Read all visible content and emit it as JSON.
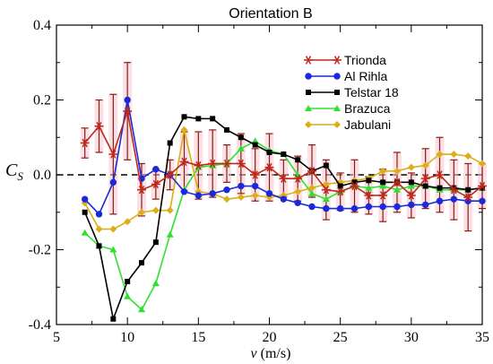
{
  "chart_data": {
    "type": "line",
    "title": "Orientation B",
    "xlabel_symbol": "v",
    "xlabel_unit": "(m/s)",
    "ylabel_symbol": "C",
    "ylabel_subscript": "S",
    "xlim": [
      5,
      35
    ],
    "ylim": [
      -0.4,
      0.4
    ],
    "xticks": [
      5,
      10,
      15,
      20,
      25,
      30,
      35
    ],
    "yticks": [
      -0.4,
      -0.2,
      0.0,
      0.2,
      0.4
    ],
    "ytick_labels": [
      "-0.4",
      "-0.2",
      "0.0",
      "0.2",
      "0.4"
    ],
    "reference_line": 0,
    "legend_position": "top-right",
    "series": [
      {
        "name": "Trionda",
        "color": "#c0281c",
        "marker": "star",
        "x": [
          7,
          8,
          9,
          10,
          11,
          12,
          13,
          14,
          15,
          16,
          17,
          18,
          19,
          20,
          21,
          22,
          23,
          24,
          25,
          26,
          27,
          28,
          29,
          30,
          31,
          32,
          33,
          34,
          35
        ],
        "y": [
          0.085,
          0.13,
          0.055,
          0.17,
          -0.04,
          -0.025,
          0.0,
          0.035,
          0.025,
          0.03,
          0.03,
          0.03,
          0.0,
          0.02,
          -0.01,
          -0.01,
          0.01,
          -0.04,
          -0.045,
          -0.03,
          -0.055,
          -0.055,
          -0.02,
          -0.055,
          -0.01,
          0.0,
          -0.04,
          -0.06,
          -0.03
        ],
        "err": [
          0.04,
          0.07,
          0.16,
          0.13,
          0.07,
          0.04,
          0.04,
          0.08,
          0.09,
          0.09,
          0.05,
          0.08,
          0.07,
          0.09,
          0.05,
          0.06,
          0.07,
          0.08,
          0.05,
          0.07,
          0.05,
          0.07,
          0.08,
          0.06,
          0.08,
          0.1,
          0.08,
          0.09,
          0.06
        ]
      },
      {
        "name": "Al Rihla",
        "color": "#1a2ad8",
        "marker": "circle",
        "x": [
          7,
          8,
          9,
          10,
          11,
          12,
          13,
          14,
          15,
          16,
          17,
          18,
          19,
          20,
          21,
          22,
          23,
          24,
          25,
          26,
          27,
          28,
          29,
          30,
          31,
          32,
          33,
          34,
          35
        ],
        "y": [
          -0.065,
          -0.105,
          -0.02,
          0.2,
          -0.01,
          0.015,
          0.0,
          -0.045,
          -0.055,
          -0.05,
          -0.04,
          -0.03,
          -0.03,
          -0.05,
          -0.065,
          -0.075,
          -0.085,
          -0.09,
          -0.09,
          -0.09,
          -0.085,
          -0.085,
          -0.085,
          -0.08,
          -0.08,
          -0.07,
          -0.065,
          -0.07,
          -0.07
        ]
      },
      {
        "name": "Telstar 18",
        "color": "#000000",
        "marker": "square",
        "x": [
          7,
          8,
          9,
          10,
          11,
          12,
          13,
          14,
          15,
          16,
          17,
          18,
          19,
          20,
          21,
          22,
          23,
          24,
          25,
          26,
          27,
          28,
          29,
          30,
          31,
          32,
          33,
          34,
          35
        ],
        "y": [
          -0.1,
          -0.19,
          -0.385,
          -0.285,
          -0.235,
          -0.18,
          0.085,
          0.155,
          0.15,
          0.15,
          0.12,
          0.1,
          0.08,
          0.06,
          0.055,
          0.04,
          0.01,
          0.025,
          -0.03,
          -0.02,
          -0.015,
          -0.02,
          -0.02,
          -0.02,
          -0.03,
          -0.035,
          -0.035,
          -0.04,
          -0.035
        ]
      },
      {
        "name": "Brazuca",
        "color": "#2fe02f",
        "marker": "triangle",
        "x": [
          7,
          8,
          9,
          10,
          11,
          12,
          13,
          14,
          15,
          16,
          17,
          18,
          19,
          20,
          21,
          22,
          23,
          24,
          25,
          26,
          27,
          28,
          29,
          30,
          31,
          32,
          33,
          34,
          35
        ],
        "y": [
          -0.155,
          -0.19,
          -0.2,
          -0.325,
          -0.36,
          -0.29,
          -0.16,
          -0.04,
          0.02,
          0.025,
          0.03,
          0.07,
          0.09,
          0.065,
          0.055,
          0.0,
          -0.05,
          -0.065,
          -0.045,
          -0.03,
          -0.035,
          -0.03,
          -0.04,
          -0.03,
          -0.03,
          -0.04,
          -0.04,
          -0.04,
          -0.035
        ]
      },
      {
        "name": "Jabulani",
        "color": "#dcae18",
        "marker": "diamond",
        "x": [
          7,
          8,
          9,
          10,
          11,
          12,
          13,
          14,
          15,
          16,
          17,
          18,
          19,
          20,
          21,
          22,
          23,
          24,
          25,
          26,
          27,
          28,
          29,
          30,
          31,
          32,
          33,
          34,
          35
        ],
        "y": [
          -0.075,
          -0.145,
          -0.145,
          -0.125,
          -0.1,
          -0.095,
          -0.095,
          0.12,
          -0.045,
          -0.05,
          -0.065,
          -0.06,
          -0.055,
          -0.06,
          -0.055,
          -0.045,
          -0.035,
          -0.025,
          -0.02,
          -0.015,
          -0.01,
          0.01,
          0.01,
          0.02,
          0.025,
          0.055,
          0.055,
          0.05,
          0.03
        ]
      }
    ]
  }
}
